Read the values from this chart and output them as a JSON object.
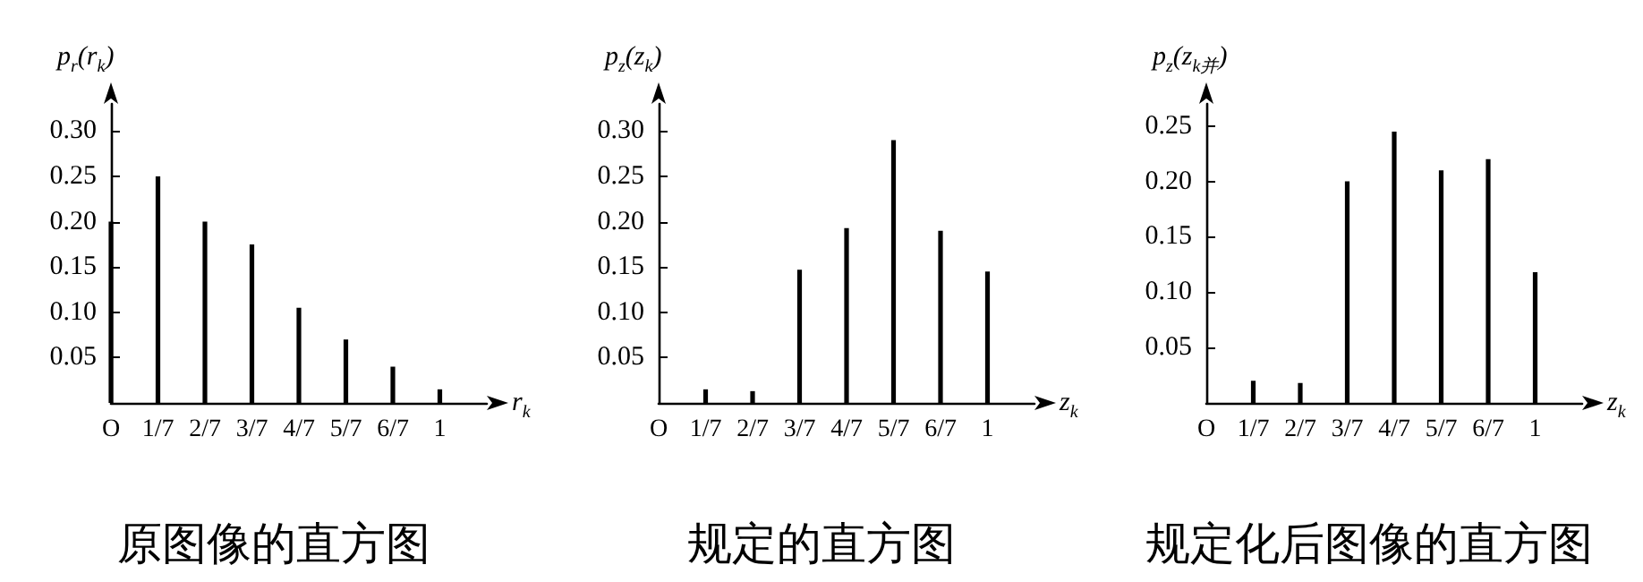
{
  "chart_data": [
    {
      "type": "bar",
      "title": "原图像的直方图",
      "xlabel": "r$_{k}$",
      "ylabel": "p$_{r}$(r$_{k}$)",
      "color": "#000000",
      "categories": [
        "O",
        "1/7",
        "2/7",
        "3/7",
        "4/7",
        "5/7",
        "6/7",
        "1"
      ],
      "values": [
        0.2,
        0.25,
        0.2,
        0.175,
        0.105,
        0.07,
        0.04,
        0.015
      ],
      "ylim": [
        0,
        0.33
      ],
      "yticks": [
        {
          "value": 0.05,
          "label": "0.05"
        },
        {
          "value": 0.1,
          "label": "0.10"
        },
        {
          "value": 0.15,
          "label": "0.15"
        },
        {
          "value": 0.2,
          "label": "0.20"
        },
        {
          "value": 0.25,
          "label": "0.25"
        },
        {
          "value": 0.3,
          "label": "0.30"
        }
      ],
      "grid": false
    },
    {
      "type": "bar",
      "title": "规定的直方图",
      "xlabel": "z$_{k}$",
      "ylabel": "p$_{z}$(z$_{k}$)",
      "color": "#000000",
      "categories": [
        "O",
        "1/7",
        "2/7",
        "3/7",
        "4/7",
        "5/7",
        "6/7",
        "1"
      ],
      "values": [
        null,
        0.015,
        0.013,
        0.147,
        0.193,
        0.29,
        0.19,
        0.145
      ],
      "ylim": [
        0,
        0.33
      ],
      "yticks": [
        {
          "value": 0.05,
          "label": "0.05"
        },
        {
          "value": 0.1,
          "label": "0.10"
        },
        {
          "value": 0.15,
          "label": "0.15"
        },
        {
          "value": 0.2,
          "label": "0.20"
        },
        {
          "value": 0.25,
          "label": "0.25"
        },
        {
          "value": 0.3,
          "label": "0.30"
        }
      ],
      "grid": false
    },
    {
      "type": "bar",
      "title": "规定化后图像的直方图",
      "xlabel": "z$_{k}$",
      "ylabel": "p$_{z}$(z$_{k并}$)",
      "color": "#000000",
      "categories": [
        "O",
        "1/7",
        "2/7",
        "3/7",
        "4/7",
        "5/7",
        "6/7",
        "1"
      ],
      "values": [
        null,
        0.02,
        0.018,
        0.2,
        0.245,
        0.21,
        0.22,
        0.118
      ],
      "ylim": [
        0,
        0.27
      ],
      "yticks": [
        {
          "value": 0.05,
          "label": "0.05"
        },
        {
          "value": 0.1,
          "label": "0.10"
        },
        {
          "value": 0.15,
          "label": "0.15"
        },
        {
          "value": 0.2,
          "label": "0.20"
        },
        {
          "value": 0.25,
          "label": "0.25"
        }
      ],
      "grid": false
    }
  ]
}
